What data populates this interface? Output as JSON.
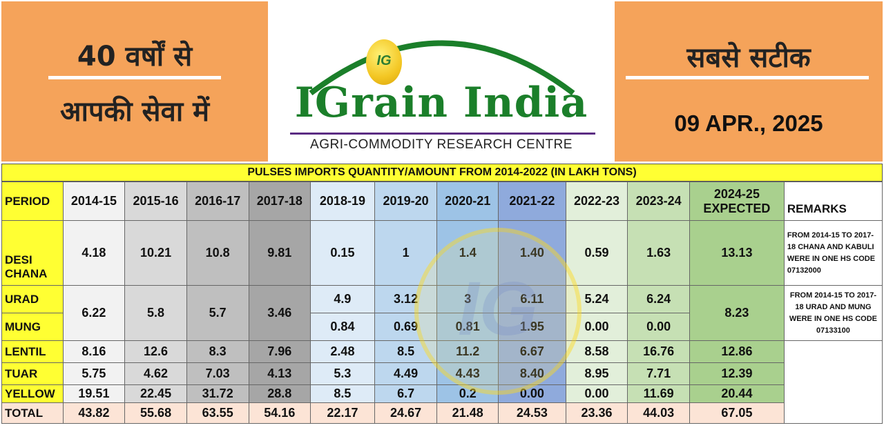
{
  "header": {
    "left_line1": "40 वर्षों से",
    "left_line2": "आपकी सेवा में",
    "right_line1": "सबसे सटीक",
    "date": "09 APR., 2025",
    "brand": "IGrain India",
    "coin_text": "IG",
    "tagline": "AGRI-COMMODITY RESEARCH CENTRE"
  },
  "table": {
    "title": "PULSES IMPORTS QUANTITY/AMOUNT FROM 2014-2022 (IN LAKH TONS)",
    "period_label": "PERIOD",
    "columns": [
      "2014-15",
      "2015-16",
      "2016-17",
      "2017-18",
      "2018-19",
      "2019-20",
      "2020-21",
      "2021-22",
      "2022-23",
      "2023-24",
      "2024-25 EXPECTED"
    ],
    "remarks_label": "REMARKS",
    "rows": {
      "desi": {
        "label": "DESI CHANA",
        "values": [
          "4.18",
          "10.21",
          "10.8",
          "9.81",
          "0.15",
          "1",
          "1.4",
          "1.40",
          "0.59",
          "1.63",
          "13.13"
        ]
      },
      "urad_mung_combined": [
        "6.22",
        "5.8",
        "5.7",
        "3.46"
      ],
      "urad": {
        "label": "URAD",
        "values": [
          "4.9",
          "3.12",
          "3",
          "6.11",
          "5.24",
          "6.24"
        ]
      },
      "mung": {
        "label": "MUNG",
        "values": [
          "0.84",
          "0.69",
          "0.81",
          "1.95",
          "0.00",
          "0.00"
        ]
      },
      "urad_mung_expected": "8.23",
      "lentil": {
        "label": "LENTIL",
        "values": [
          "8.16",
          "12.6",
          "8.3",
          "7.96",
          "2.48",
          "8.5",
          "11.2",
          "6.67",
          "8.58",
          "16.76",
          "12.86"
        ]
      },
      "tuar": {
        "label": "TUAR",
        "values": [
          "5.75",
          "4.62",
          "7.03",
          "4.13",
          "5.3",
          "4.49",
          "4.43",
          "8.40",
          "8.95",
          "7.71",
          "12.39"
        ]
      },
      "yellow": {
        "label": "YELLOW",
        "values": [
          "19.51",
          "22.45",
          "31.72",
          "28.8",
          "8.5",
          "6.7",
          "0.2",
          "0.00",
          "0.00",
          "11.69",
          "20.44"
        ]
      },
      "total": {
        "label": "TOTAL",
        "values": [
          "43.82",
          "55.68",
          "63.55",
          "54.16",
          "22.17",
          "24.67",
          "21.48",
          "24.53",
          "23.36",
          "44.03",
          "67.05"
        ]
      }
    },
    "remark_chana": "FROM 2014-15 TO 2017-18 CHANA AND KABULI WERE IN ONE HS CODE 07132000",
    "remark_urad_mung": "FROM 2014-15 TO 2017-18 URAD AND MUNG WERE IN ONE HS CODE 07133100"
  }
}
